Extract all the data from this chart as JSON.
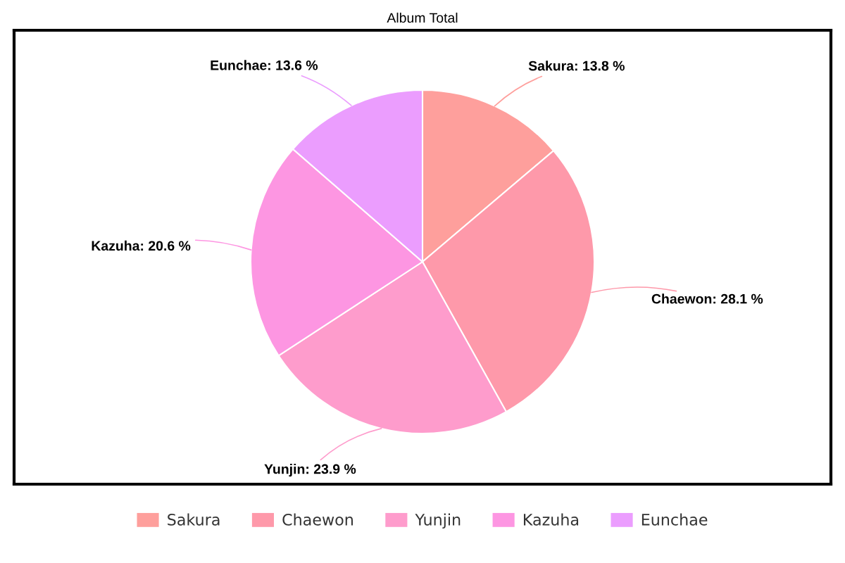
{
  "chart_data": {
    "type": "pie",
    "title": "Album Total",
    "categories": [
      "Sakura",
      "Chaewon",
      "Yunjin",
      "Kazuha",
      "Eunchae"
    ],
    "values": [
      13.8,
      28.1,
      23.9,
      20.6,
      13.6
    ],
    "colors": [
      "#fe9f9c",
      "#fe99aa",
      "#fe9ccc",
      "#fd96e2",
      "#eb9dfe"
    ],
    "value_labels": [
      "Sakura: 13.8 %",
      "Chaewon: 28.1 %",
      "Yunjin: 23.9 %",
      "Kazuha: 20.6 %",
      "Eunchae: 13.6 %"
    ],
    "legend": "bottom"
  }
}
